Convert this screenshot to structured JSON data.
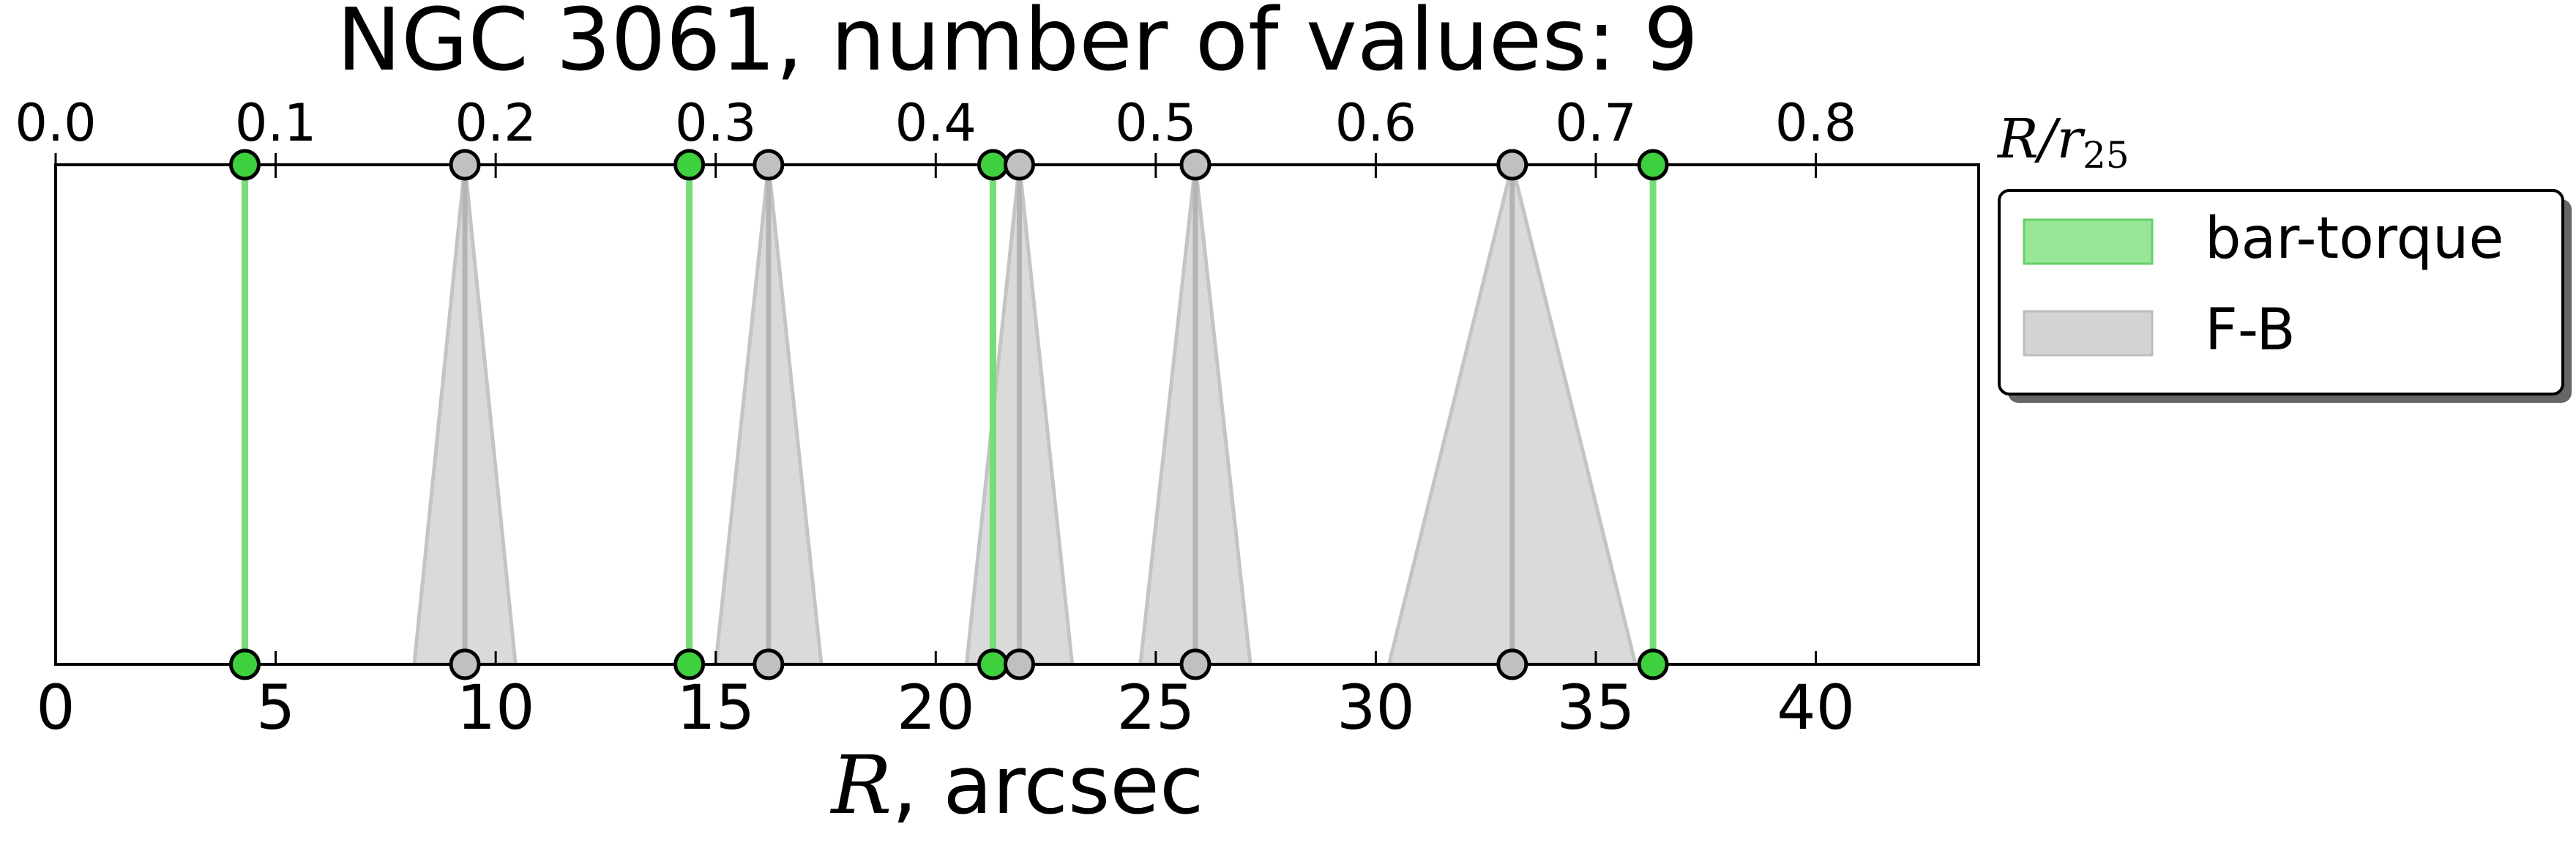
{
  "chart_data": {
    "type": "scatter",
    "title": "NGC 3061, number of values: 9",
    "xlabel_symbol": "R",
    "xlabel_rest": ", arcsec",
    "top_xlabel_num": "R/r",
    "top_xlabel_sub": "25",
    "xlim": [
      0,
      43.7
    ],
    "x_ticks": [
      "0",
      "5",
      "10",
      "15",
      "20",
      "25",
      "30",
      "35",
      "40"
    ],
    "top_ticks": [
      "0.0",
      "0.1",
      "0.2",
      "0.3",
      "0.4",
      "0.5",
      "0.6",
      "0.7",
      "0.8"
    ],
    "top_scale_arcsec_per_unit": 50.0,
    "grid": false,
    "legend_placement": "outside right",
    "series": [
      {
        "name": "bar-torque",
        "color": "#3fd03f",
        "line_color": "#77dd77",
        "values": [
          4.3,
          14.4,
          21.3,
          36.3
        ],
        "errors": [
          0,
          0,
          0,
          0
        ]
      },
      {
        "name": "F-B",
        "color": "#d3d3d3",
        "line_color": "#b4b4b4",
        "values": [
          9.3,
          16.2,
          21.9,
          25.9,
          33.1
        ],
        "errors": [
          1.15,
          1.2,
          1.2,
          1.25,
          2.8
        ]
      }
    ]
  }
}
